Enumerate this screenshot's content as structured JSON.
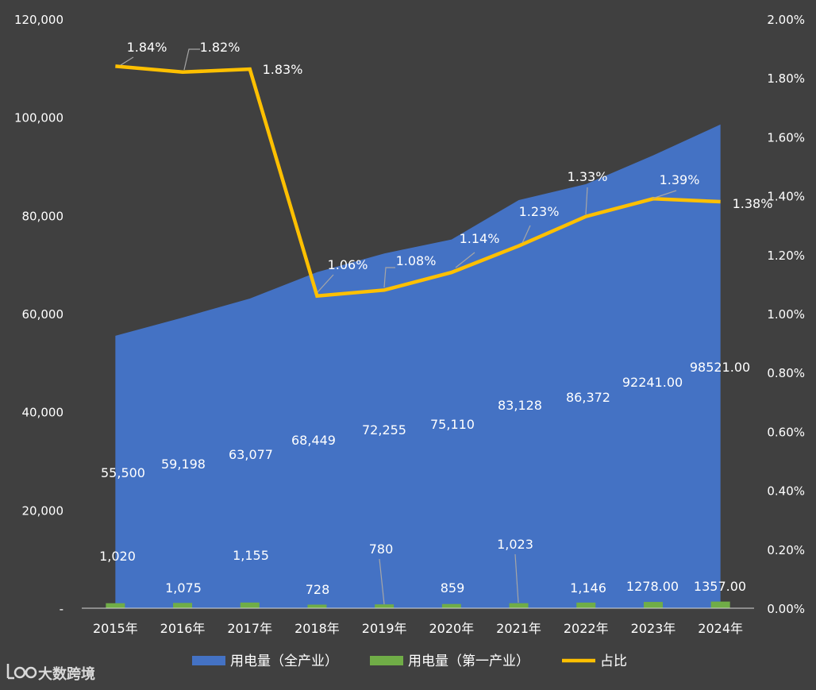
{
  "chart_data": {
    "type": "area",
    "categories": [
      "2015年",
      "2016年",
      "2017年",
      "2018年",
      "2019年",
      "2020年",
      "2021年",
      "2022年",
      "2023年",
      "2024年"
    ],
    "y_left": {
      "min": 0,
      "max": 120000,
      "ticks": [
        "-",
        "20,000",
        "40,000",
        "60,000",
        "80,000",
        "100,000",
        "120,000"
      ]
    },
    "y_right": {
      "min": 0,
      "max": 0.02,
      "ticks": [
        "0.00%",
        "0.20%",
        "0.40%",
        "0.60%",
        "0.80%",
        "1.00%",
        "1.20%",
        "1.40%",
        "1.60%",
        "1.80%",
        "2.00%"
      ]
    },
    "series": [
      {
        "name": "用电量（全产业）",
        "type": "area",
        "axis": "left",
        "color": "#4472c4",
        "values": [
          55500,
          59198,
          63077,
          68449,
          72255,
          75110,
          83128,
          86372,
          92241,
          98521
        ],
        "labels": [
          "55,500",
          "59,198",
          "63,077",
          "68,449",
          "72,255",
          "75,110",
          "83,128",
          "86,372",
          "92241.00",
          "98521.00"
        ]
      },
      {
        "name": "用电量（第一产业）",
        "type": "bar",
        "axis": "left",
        "color": "#70ad47",
        "values": [
          1020,
          1075,
          1155,
          728,
          780,
          859,
          1023,
          1146,
          1278,
          1357
        ],
        "labels": [
          "1,020",
          "1,075",
          "1,155",
          "728",
          "780",
          "859",
          "1,023",
          "1,146",
          "1278.00",
          "1357.00"
        ]
      },
      {
        "name": "占比",
        "type": "line",
        "axis": "right",
        "color": "#ffc000",
        "values": [
          0.0184,
          0.0182,
          0.0183,
          0.0106,
          0.0108,
          0.0114,
          0.0123,
          0.0133,
          0.0139,
          0.0138
        ],
        "labels": [
          "1.84%",
          "1.82%",
          "1.83%",
          "1.06%",
          "1.08%",
          "1.14%",
          "1.23%",
          "1.33%",
          "1.39%",
          "1.38%"
        ]
      }
    ],
    "legend_position": "bottom",
    "grid": false
  },
  "legend": {
    "items": [
      {
        "label": "用电量（全产业）",
        "color": "#4472c4"
      },
      {
        "label": "用电量（第一产业）",
        "color": "#70ad47"
      },
      {
        "label": "占比",
        "color": "#ffc000"
      }
    ]
  },
  "watermark": {
    "text": "大数跨境"
  },
  "colors": {
    "background": "#404040",
    "text": "#ffffff",
    "leader": "#a6a6a6"
  }
}
